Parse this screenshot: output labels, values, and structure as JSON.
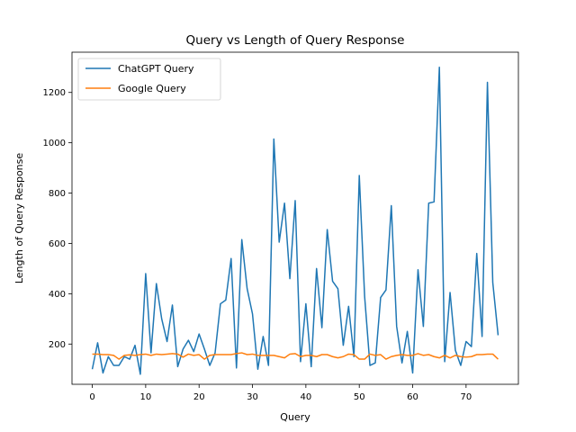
{
  "chart_data": {
    "type": "line",
    "title": "Query vs Length of Query Response",
    "xlabel": "Query",
    "ylabel": "Length of Query Response",
    "xlim": [
      -3.8,
      79.8
    ],
    "ylim": [
      40,
      1360
    ],
    "xticks": [
      0,
      10,
      20,
      30,
      40,
      50,
      60,
      70
    ],
    "yticks": [
      200,
      400,
      600,
      800,
      1000,
      1200
    ],
    "legend_position": "top-left",
    "series": [
      {
        "name": "ChatGPT Query",
        "color": "#1f77b4",
        "x": [
          0,
          1,
          2,
          3,
          4,
          5,
          6,
          7,
          8,
          9,
          10,
          11,
          12,
          13,
          14,
          15,
          16,
          17,
          18,
          19,
          20,
          21,
          22,
          23,
          24,
          25,
          26,
          27,
          28,
          29,
          30,
          31,
          32,
          33,
          34,
          35,
          36,
          37,
          38,
          39,
          40,
          41,
          42,
          43,
          44,
          45,
          46,
          47,
          48,
          49,
          50,
          51,
          52,
          53,
          54,
          55,
          56,
          57,
          58,
          59,
          60,
          61,
          62,
          63,
          64,
          65,
          66,
          67,
          68,
          69,
          70,
          71,
          72,
          73,
          74,
          75,
          76
        ],
        "values": [
          100,
          205,
          85,
          150,
          115,
          115,
          150,
          140,
          195,
          80,
          480,
          165,
          440,
          300,
          210,
          355,
          110,
          180,
          215,
          170,
          240,
          180,
          115,
          165,
          360,
          375,
          540,
          105,
          615,
          420,
          320,
          100,
          230,
          115,
          1015,
          605,
          760,
          460,
          770,
          130,
          360,
          110,
          500,
          265,
          655,
          450,
          420,
          195,
          350,
          150,
          870,
          390,
          115,
          125,
          385,
          415,
          750,
          270,
          125,
          250,
          85,
          495,
          270,
          760,
          765,
          1300,
          130,
          405,
          175,
          115,
          210,
          190,
          560,
          230,
          1240,
          445,
          235
        ]
      },
      {
        "name": "Google Query",
        "color": "#ff7f0e",
        "x": [
          0,
          1,
          2,
          3,
          4,
          5,
          6,
          7,
          8,
          9,
          10,
          11,
          12,
          13,
          14,
          15,
          16,
          17,
          18,
          19,
          20,
          21,
          22,
          23,
          24,
          25,
          26,
          27,
          28,
          29,
          30,
          31,
          32,
          33,
          34,
          35,
          36,
          37,
          38,
          39,
          40,
          41,
          42,
          43,
          44,
          45,
          46,
          47,
          48,
          49,
          50,
          51,
          52,
          53,
          54,
          55,
          56,
          57,
          58,
          59,
          60,
          61,
          62,
          63,
          64,
          65,
          66,
          67,
          68,
          69,
          70,
          71,
          72,
          73,
          74,
          75,
          76
        ],
        "values": [
          160,
          160,
          158,
          158,
          155,
          140,
          155,
          157,
          155,
          158,
          160,
          155,
          160,
          158,
          160,
          162,
          160,
          148,
          160,
          155,
          158,
          140,
          155,
          158,
          158,
          158,
          158,
          162,
          165,
          158,
          160,
          155,
          155,
          155,
          155,
          150,
          145,
          160,
          162,
          150,
          155,
          155,
          150,
          158,
          158,
          150,
          145,
          150,
          160,
          158,
          140,
          140,
          160,
          155,
          158,
          140,
          150,
          155,
          158,
          155,
          155,
          162,
          155,
          158,
          150,
          145,
          155,
          145,
          155,
          150,
          148,
          150,
          158,
          158,
          160,
          160,
          140
        ]
      }
    ]
  }
}
